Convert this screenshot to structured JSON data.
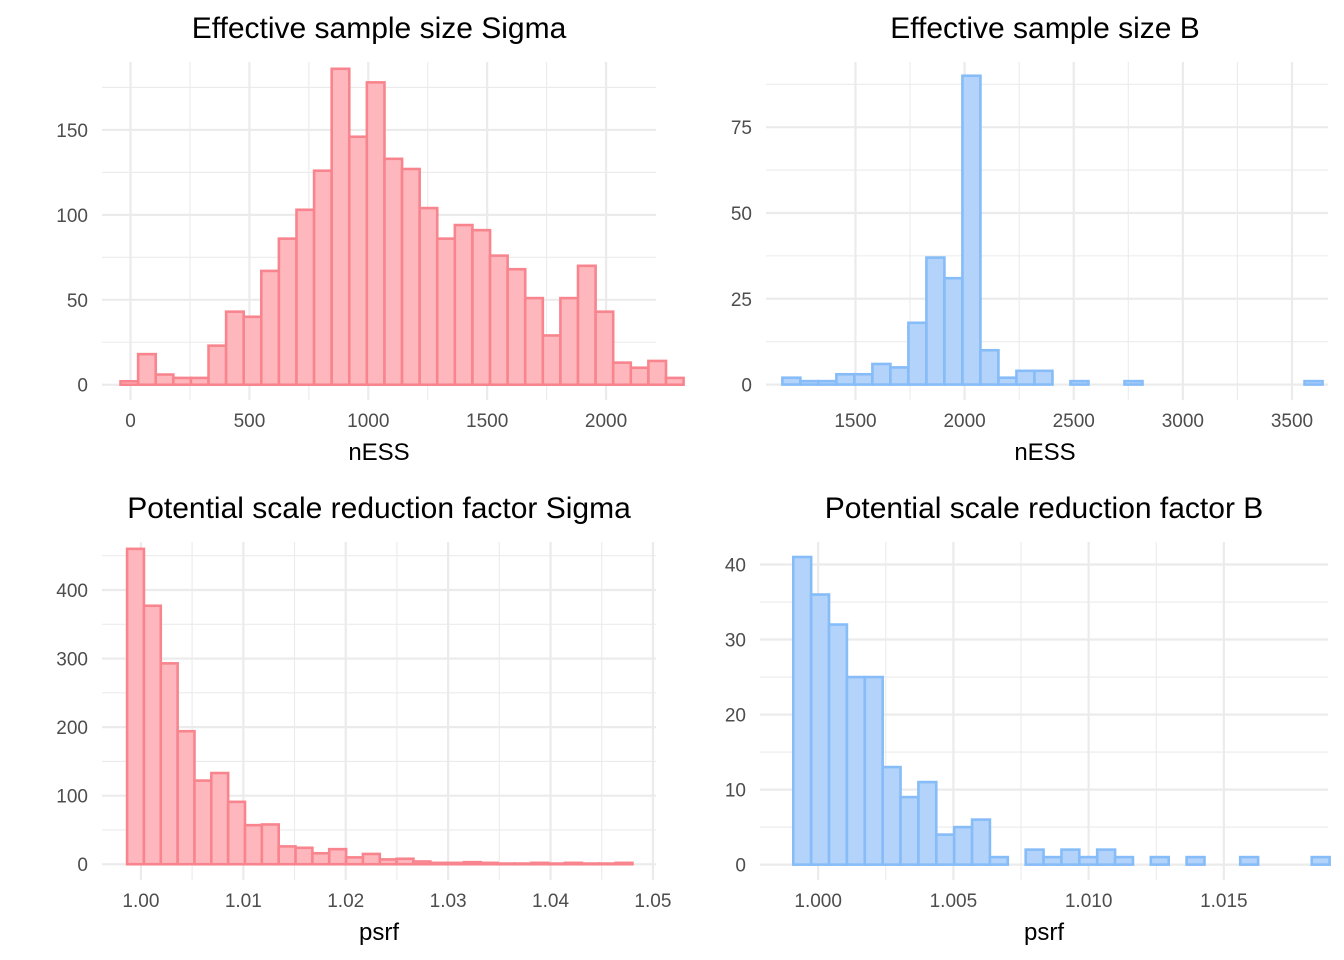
{
  "colors": {
    "sigma_fill": "#ffb7be",
    "sigma_line": "#f8858e",
    "b_fill": "#b4d3fb",
    "b_line": "#86bcf7",
    "grid": "#ebebeb",
    "tick_text": "#4d4d4d"
  },
  "chart_data": [
    {
      "id": "ess_sigma",
      "type": "bar",
      "title": "Effective sample size Sigma",
      "xlabel": "nESS",
      "ylabel": "",
      "palette": "sigma",
      "grid": true,
      "xlim": [
        -120,
        2210
      ],
      "ylim": [
        -9,
        190
      ],
      "x_ticks": [
        0,
        500,
        1000,
        1500,
        2000
      ],
      "x_tick_labels": [
        "0",
        "500",
        "1000",
        "1500",
        "2000"
      ],
      "y_ticks": [
        0,
        50,
        100,
        150
      ],
      "y_tick_labels": [
        "0",
        "50",
        "100",
        "150"
      ],
      "bin_start": -42,
      "bin_width": 74,
      "values": [
        2,
        18,
        6,
        4,
        4,
        23,
        43,
        40,
        67,
        86,
        103,
        126,
        186,
        146,
        178,
        133,
        127,
        104,
        86,
        94,
        91,
        76,
        68,
        51,
        29,
        51,
        70,
        43,
        13,
        10,
        14,
        4
      ]
    },
    {
      "id": "ess_b",
      "type": "bar",
      "title": "Effective sample size B",
      "xlabel": "nESS",
      "ylabel": "",
      "palette": "b",
      "grid": true,
      "xlim": [
        1090,
        3665
      ],
      "ylim": [
        -4.5,
        94
      ],
      "x_ticks": [
        1500,
        2000,
        2500,
        3000,
        3500
      ],
      "x_tick_labels": [
        "1500",
        "2000",
        "2500",
        "3000",
        "3500"
      ],
      "y_ticks": [
        0,
        25,
        50,
        75
      ],
      "y_tick_labels": [
        "0",
        "25",
        "50",
        "75"
      ],
      "bin_start": 1165,
      "bin_width": 82.5,
      "values": [
        2,
        1,
        1,
        3,
        3,
        6,
        5,
        18,
        37,
        31,
        90,
        10,
        2,
        4,
        4,
        0,
        1,
        0,
        0,
        1,
        0,
        0,
        0,
        0,
        0,
        0,
        0,
        0,
        0,
        1
      ]
    },
    {
      "id": "psrf_sigma",
      "type": "bar",
      "title": "Potential scale reduction factor Sigma",
      "xlabel": "psrf",
      "ylabel": "",
      "palette": "sigma",
      "grid": true,
      "xlim": [
        0.9962,
        1.0503
      ],
      "ylim": [
        -23,
        470
      ],
      "x_ticks": [
        1.0,
        1.01,
        1.02,
        1.03,
        1.04,
        1.05
      ],
      "x_tick_labels": [
        "1.00",
        "1.01",
        "1.02",
        "1.03",
        "1.04",
        "1.05"
      ],
      "y_ticks": [
        0,
        100,
        200,
        300,
        400
      ],
      "y_tick_labels": [
        "0",
        "100",
        "200",
        "300",
        "400"
      ],
      "bin_start": 0.99865,
      "bin_width": 0.001645,
      "values": [
        460,
        377,
        293,
        194,
        122,
        133,
        91,
        57,
        58,
        26,
        24,
        16,
        22,
        10,
        15,
        7,
        8,
        4,
        2,
        2,
        3,
        2,
        1,
        1,
        2,
        1,
        2,
        1,
        1,
        2
      ]
    },
    {
      "id": "psrf_b",
      "type": "bar",
      "title": "Potential scale reduction factor B",
      "xlabel": "psrf",
      "ylabel": "",
      "palette": "b",
      "grid": true,
      "xlim": [
        0.99785,
        1.01885
      ],
      "ylim": [
        -2.05,
        43
      ],
      "x_ticks": [
        1.0,
        1.005,
        1.01,
        1.015
      ],
      "x_tick_labels": [
        "1.000",
        "1.005",
        "1.010",
        "1.015"
      ],
      "y_ticks": [
        0,
        10,
        20,
        30,
        40
      ],
      "y_tick_labels": [
        "0",
        "10",
        "20",
        "30",
        "40"
      ],
      "bin_start": 0.99908,
      "bin_width": 0.000661,
      "values": [
        41,
        36,
        32,
        25,
        25,
        13,
        9,
        11,
        4,
        5,
        6,
        1,
        0,
        2,
        1,
        2,
        1,
        2,
        1,
        0,
        1,
        0,
        1,
        0,
        0,
        1,
        0,
        0,
        0,
        1
      ]
    }
  ]
}
